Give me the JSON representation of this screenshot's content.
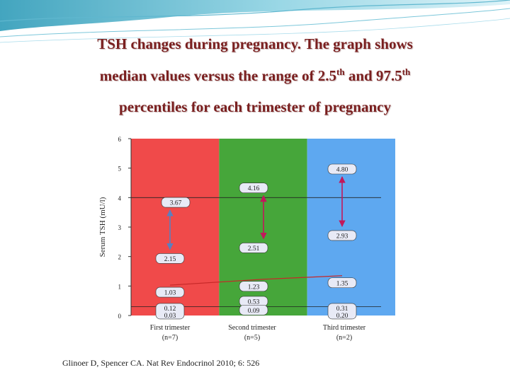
{
  "title": {
    "line1": "TSH changes during pregnancy. The graph shows",
    "line2_pre": "median values versus the range of 2.5",
    "line2_sup1": "th",
    "line2_mid": " and 97.5",
    "line2_sup2": "th",
    "line3": "percentiles for each trimester of pregnancy"
  },
  "chart_data": {
    "type": "range",
    "ylabel": "Serum TSH (mU/l)",
    "ylim": [
      0,
      6
    ],
    "yticks": [
      "0",
      "1",
      "2",
      "3",
      "4",
      "5",
      "6"
    ],
    "reference_lines": [
      4.0,
      0.3
    ],
    "categories": [
      {
        "label": "First trimester",
        "n": "(n=7)",
        "color": "#f04a4a"
      },
      {
        "label": "Second trimester",
        "n": "(n=5)",
        "color": "#46a63a"
      },
      {
        "label": "Third trimester",
        "n": "(n=2)",
        "color": "#5ea8f0"
      }
    ],
    "upper_ranges": [
      {
        "high": 3.67,
        "low": 2.15,
        "high_label": "3.67",
        "low_label": "2.15"
      },
      {
        "high": 4.16,
        "low": 2.51,
        "high_label": "4.16",
        "low_label": "2.51"
      },
      {
        "high": 4.8,
        "low": 2.93,
        "high_label": "4.80",
        "low_label": "2.93"
      }
    ],
    "lower_ranges": [
      {
        "high": 0.12,
        "low": 0.03,
        "high_label": "0.12",
        "low_label": "0.03"
      },
      {
        "high": 0.53,
        "low": 0.09,
        "high_label": "0.53",
        "low_label": "0.09"
      },
      {
        "high": 0.31,
        "low": 0.2,
        "high_label": "0.31",
        "low_label": "0.20"
      }
    ],
    "medians": [
      {
        "value": 1.03,
        "label": "1.03"
      },
      {
        "value": 1.23,
        "label": "1.23"
      },
      {
        "value": 1.35,
        "label": "1.35"
      }
    ],
    "colors": {
      "range_arrow": "#c2185b",
      "first_range_arrow": "#5b7fbf",
      "median_line": "#c62828",
      "label_box": "#e8eaf6"
    }
  },
  "citation": "Glinoer D, Spencer CA. Nat Rev Endocrinol 2010; 6: 526"
}
